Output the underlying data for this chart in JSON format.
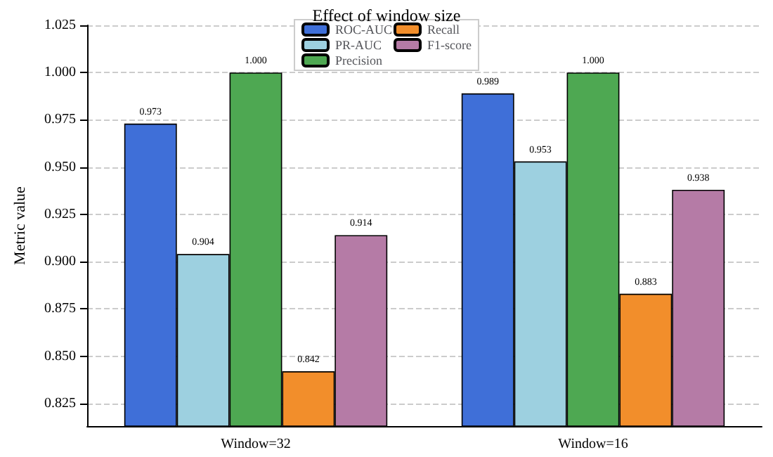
{
  "chart_data": {
    "type": "bar",
    "title": "Effect of window size",
    "ylabel": "Metric value",
    "categories": [
      "Window=32",
      "Window=16"
    ],
    "series": [
      {
        "name": "ROC-AUC",
        "color": "#3f6fd8",
        "values": [
          0.973,
          0.989
        ],
        "value_labels": [
          "0.973",
          "0.989"
        ]
      },
      {
        "name": "PR-AUC",
        "color": "#9dd0e0",
        "values": [
          0.904,
          0.953
        ],
        "value_labels": [
          "0.904",
          "0.953"
        ]
      },
      {
        "name": "Precision",
        "color": "#4ea852",
        "values": [
          1.0,
          1.0
        ],
        "value_labels": [
          "1.000",
          "1.000"
        ]
      },
      {
        "name": "Recall",
        "color": "#f28e2b",
        "values": [
          0.842,
          0.883
        ],
        "value_labels": [
          "0.842",
          "0.883"
        ]
      },
      {
        "name": "F1-score",
        "color": "#b57ba6",
        "values": [
          0.914,
          0.938
        ],
        "value_labels": [
          "0.914",
          "0.938"
        ]
      }
    ],
    "ylim": [
      0.813,
      1.025
    ],
    "yticks": [
      0.825,
      {
        "value": 0.85,
        "label": "0.850"
      },
      0.875,
      {
        "value": 0.9,
        "label": "0.900"
      },
      0.925,
      {
        "value": 0.95,
        "label": "0.950"
      },
      0.975,
      {
        "value": 1.0,
        "label": "1.000"
      },
      1.025
    ],
    "grid": "y",
    "legend": "top"
  }
}
